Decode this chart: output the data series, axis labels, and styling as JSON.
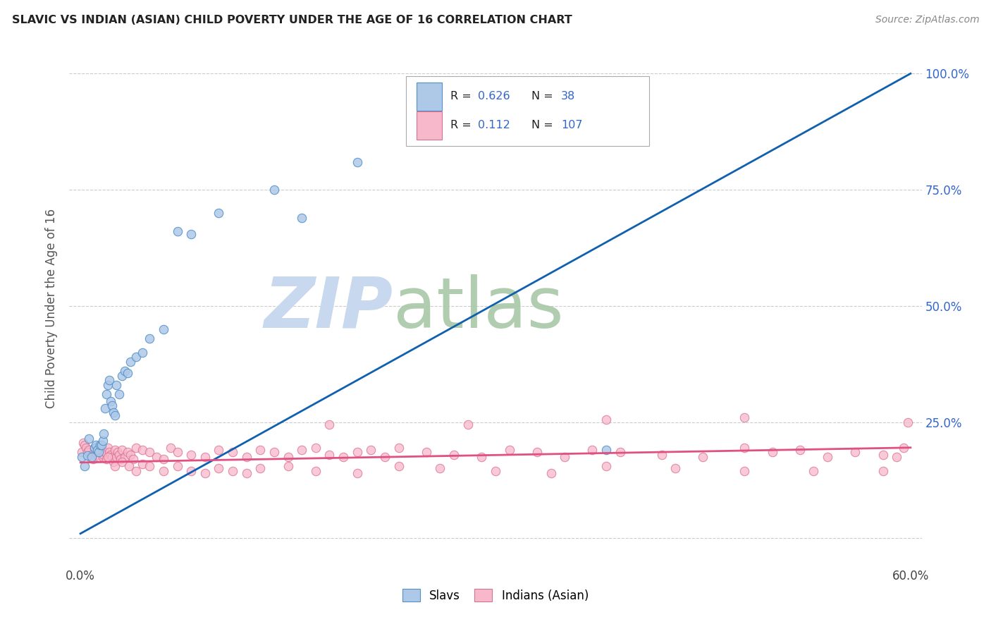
{
  "title": "SLAVIC VS INDIAN (ASIAN) CHILD POVERTY UNDER THE AGE OF 16 CORRELATION CHART",
  "source": "Source: ZipAtlas.com",
  "ylabel": "Child Poverty Under the Age of 16",
  "xlim_min": -0.008,
  "xlim_max": 0.608,
  "ylim_min": -0.06,
  "ylim_max": 1.05,
  "slavs_color": "#aec8e8",
  "slavs_edge": "#5090c8",
  "indians_color": "#f8b8cc",
  "indians_edge": "#d87090",
  "slavs_line_color": "#1060b0",
  "indians_line_color": "#e05080",
  "legend_blue": "#3366cc",
  "watermark_zip_color": "#c8d8ee",
  "watermark_atlas_color": "#a8c8a8",
  "slavs_x": [
    0.001,
    0.003,
    0.005,
    0.006,
    0.008,
    0.01,
    0.011,
    0.012,
    0.013,
    0.014,
    0.015,
    0.016,
    0.017,
    0.018,
    0.019,
    0.02,
    0.021,
    0.022,
    0.023,
    0.024,
    0.025,
    0.026,
    0.028,
    0.03,
    0.032,
    0.034,
    0.036,
    0.04,
    0.045,
    0.05,
    0.06,
    0.07,
    0.08,
    0.1,
    0.14,
    0.16,
    0.2,
    0.38
  ],
  "slavs_y": [
    0.175,
    0.155,
    0.178,
    0.215,
    0.175,
    0.195,
    0.2,
    0.19,
    0.185,
    0.2,
    0.2,
    0.21,
    0.225,
    0.28,
    0.31,
    0.33,
    0.34,
    0.295,
    0.285,
    0.27,
    0.265,
    0.33,
    0.31,
    0.35,
    0.36,
    0.355,
    0.38,
    0.39,
    0.4,
    0.43,
    0.45,
    0.66,
    0.655,
    0.7,
    0.75,
    0.69,
    0.81,
    0.19
  ],
  "indians_x": [
    0.001,
    0.002,
    0.003,
    0.004,
    0.005,
    0.006,
    0.007,
    0.008,
    0.009,
    0.01,
    0.011,
    0.012,
    0.013,
    0.014,
    0.015,
    0.016,
    0.017,
    0.018,
    0.019,
    0.02,
    0.021,
    0.022,
    0.023,
    0.024,
    0.025,
    0.026,
    0.027,
    0.028,
    0.029,
    0.03,
    0.032,
    0.034,
    0.036,
    0.038,
    0.04,
    0.045,
    0.05,
    0.055,
    0.06,
    0.065,
    0.07,
    0.08,
    0.09,
    0.1,
    0.11,
    0.12,
    0.13,
    0.14,
    0.15,
    0.16,
    0.17,
    0.18,
    0.19,
    0.2,
    0.21,
    0.22,
    0.23,
    0.25,
    0.27,
    0.29,
    0.31,
    0.33,
    0.35,
    0.37,
    0.39,
    0.42,
    0.45,
    0.48,
    0.5,
    0.52,
    0.54,
    0.56,
    0.58,
    0.59,
    0.595,
    0.598,
    0.02,
    0.025,
    0.03,
    0.035,
    0.04,
    0.045,
    0.05,
    0.06,
    0.07,
    0.08,
    0.09,
    0.1,
    0.11,
    0.12,
    0.13,
    0.15,
    0.17,
    0.2,
    0.23,
    0.26,
    0.3,
    0.34,
    0.38,
    0.43,
    0.48,
    0.53,
    0.58,
    0.48,
    0.38,
    0.28,
    0.18
  ],
  "indians_y": [
    0.185,
    0.205,
    0.2,
    0.195,
    0.185,
    0.19,
    0.175,
    0.18,
    0.17,
    0.195,
    0.185,
    0.18,
    0.175,
    0.195,
    0.19,
    0.175,
    0.18,
    0.185,
    0.17,
    0.195,
    0.185,
    0.18,
    0.175,
    0.165,
    0.19,
    0.175,
    0.185,
    0.18,
    0.17,
    0.19,
    0.175,
    0.185,
    0.18,
    0.17,
    0.195,
    0.19,
    0.185,
    0.175,
    0.17,
    0.195,
    0.185,
    0.18,
    0.175,
    0.19,
    0.185,
    0.175,
    0.19,
    0.185,
    0.175,
    0.19,
    0.195,
    0.18,
    0.175,
    0.185,
    0.19,
    0.175,
    0.195,
    0.185,
    0.18,
    0.175,
    0.19,
    0.185,
    0.175,
    0.19,
    0.185,
    0.18,
    0.175,
    0.195,
    0.185,
    0.19,
    0.175,
    0.185,
    0.18,
    0.175,
    0.195,
    0.25,
    0.175,
    0.155,
    0.165,
    0.155,
    0.145,
    0.16,
    0.155,
    0.145,
    0.155,
    0.145,
    0.14,
    0.15,
    0.145,
    0.14,
    0.15,
    0.155,
    0.145,
    0.14,
    0.155,
    0.15,
    0.145,
    0.14,
    0.155,
    0.15,
    0.145,
    0.145,
    0.145,
    0.26,
    0.255,
    0.245,
    0.245
  ],
  "slavs_line_x": [
    0.0,
    0.6
  ],
  "slavs_line_y": [
    0.01,
    1.0
  ],
  "indians_line_x": [
    0.0,
    0.6
  ],
  "indians_line_y": [
    0.163,
    0.195
  ]
}
